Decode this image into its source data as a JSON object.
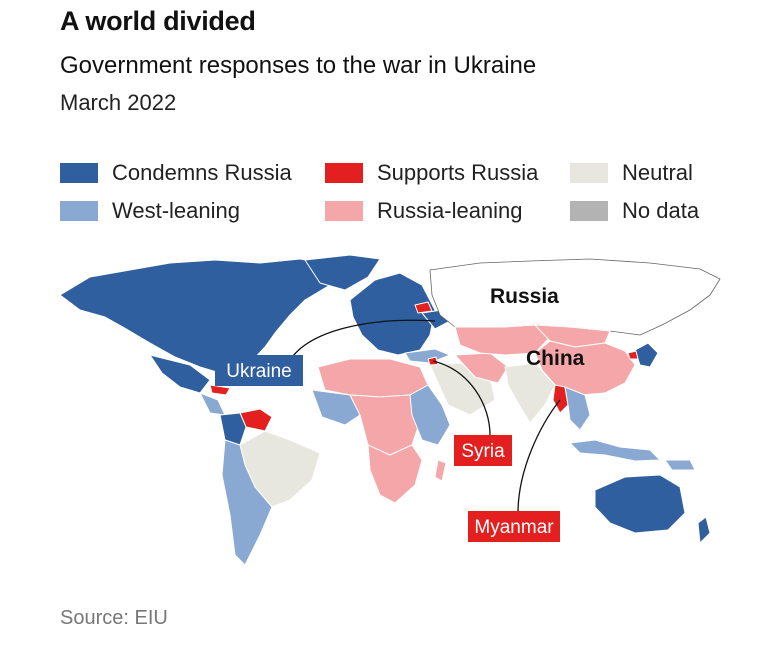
{
  "title": "A world divided",
  "subtitle": "Government responses to the war in Ukraine",
  "date": "March 2022",
  "legend": [
    {
      "label": "Condemns Russia",
      "color": "#2f5f9e"
    },
    {
      "label": "West-leaning",
      "color": "#89a9d3"
    },
    {
      "label": "Supports Russia",
      "color": "#e3201f"
    },
    {
      "label": "Russia-leaning",
      "color": "#f4a6a8"
    },
    {
      "label": "Neutral",
      "color": "#e8e7df"
    },
    {
      "label": "No data",
      "color": "#b3b3b3"
    }
  ],
  "map_labels": {
    "russia": "Russia",
    "china": "China",
    "ukraine": "Ukraine",
    "syria": "Syria",
    "myanmar": "Myanmar"
  },
  "colors": {
    "condemns": "#2f5f9e",
    "west_leaning": "#89a9d3",
    "supports": "#e3201f",
    "russia_leaning": "#f4a6a8",
    "neutral": "#e8e7df",
    "no_data": "#b3b3b3"
  },
  "source": "Source: EIU"
}
